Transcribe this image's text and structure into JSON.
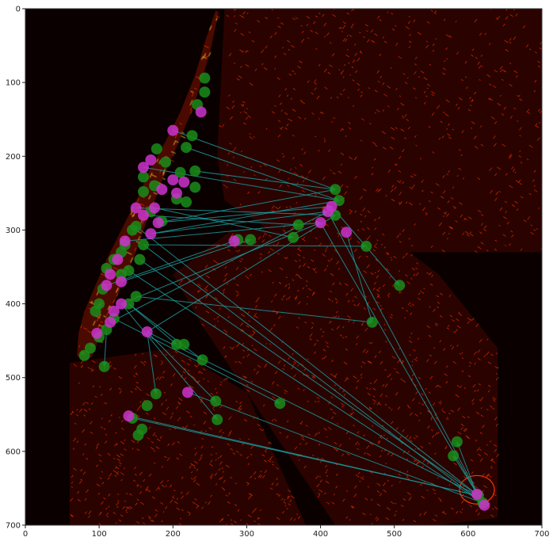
{
  "chart_data": {
    "type": "scatter",
    "title": "",
    "xlabel": "",
    "ylabel": "",
    "xlim": [
      0,
      700
    ],
    "ylim": [
      700,
      0
    ],
    "x_ticks": [
      0,
      100,
      200,
      300,
      400,
      500,
      600,
      700
    ],
    "y_ticks": [
      0,
      100,
      200,
      300,
      400,
      500,
      600,
      700
    ],
    "x_tick_labels": [
      "0",
      "100",
      "200",
      "300",
      "400",
      "500",
      "600",
      "700"
    ],
    "y_tick_labels": [
      "0",
      "100",
      "200",
      "300",
      "400",
      "500",
      "600",
      "700"
    ],
    "grid": false,
    "background_color": "#0a0000",
    "colors": {
      "street_map": "#ff3300",
      "street_map_bright": "#ffcc33",
      "pickup_points": "#1a8c1a",
      "dropoff_points": "#cc33cc",
      "trip_arrows": "#1a9a9a"
    },
    "series": [
      {
        "points": [
          [
            243,
            94
          ],
          [
            243,
            113
          ],
          [
            233,
            130
          ],
          [
            226,
            172
          ],
          [
            218,
            188
          ],
          [
            230,
            220
          ],
          [
            210,
            222
          ],
          [
            190,
            208
          ],
          [
            178,
            190
          ],
          [
            205,
            258
          ],
          [
            230,
            242
          ],
          [
            175,
            240
          ],
          [
            160,
            248
          ],
          [
            160,
            228
          ],
          [
            218,
            262
          ],
          [
            185,
            288
          ],
          [
            170,
            275
          ],
          [
            150,
            295
          ],
          [
            145,
            300
          ],
          [
            135,
            320
          ],
          [
            130,
            330
          ],
          [
            120,
            340
          ],
          [
            160,
            320
          ],
          [
            155,
            340
          ],
          [
            140,
            355
          ],
          [
            130,
            360
          ],
          [
            110,
            352
          ],
          [
            105,
            380
          ],
          [
            100,
            400
          ],
          [
            95,
            410
          ],
          [
            120,
            420
          ],
          [
            110,
            435
          ],
          [
            100,
            445
          ],
          [
            88,
            460
          ],
          [
            80,
            470
          ],
          [
            150,
            390
          ],
          [
            140,
            400
          ],
          [
            107,
            485
          ],
          [
            205,
            455
          ],
          [
            215,
            455
          ],
          [
            240,
            476
          ],
          [
            177,
            522
          ],
          [
            165,
            538
          ],
          [
            145,
            555
          ],
          [
            158,
            570
          ],
          [
            153,
            578
          ],
          [
            258,
            532
          ],
          [
            260,
            557
          ],
          [
            345,
            535
          ],
          [
            288,
            313
          ],
          [
            305,
            313
          ],
          [
            363,
            310
          ],
          [
            370,
            293
          ],
          [
            420,
            245
          ],
          [
            425,
            260
          ],
          [
            420,
            280
          ],
          [
            462,
            322
          ],
          [
            507,
            375
          ],
          [
            470,
            425
          ],
          [
            585,
            587
          ],
          [
            580,
            606
          ],
          [
            614,
            660
          ],
          [
            620,
            670
          ]
        ]
      },
      {
        "points": [
          [
            238,
            140
          ],
          [
            200,
            165
          ],
          [
            170,
            205
          ],
          [
            160,
            215
          ],
          [
            200,
            232
          ],
          [
            205,
            250
          ],
          [
            215,
            235
          ],
          [
            185,
            245
          ],
          [
            150,
            270
          ],
          [
            160,
            280
          ],
          [
            175,
            270
          ],
          [
            180,
            290
          ],
          [
            170,
            305
          ],
          [
            135,
            315
          ],
          [
            125,
            340
          ],
          [
            115,
            360
          ],
          [
            130,
            370
          ],
          [
            110,
            375
          ],
          [
            130,
            400
          ],
          [
            120,
            410
          ],
          [
            115,
            425
          ],
          [
            97,
            440
          ],
          [
            165,
            438
          ],
          [
            220,
            520
          ],
          [
            140,
            552
          ],
          [
            283,
            315
          ],
          [
            400,
            290
          ],
          [
            410,
            275
          ],
          [
            415,
            268
          ],
          [
            435,
            303
          ],
          [
            612,
            658
          ],
          [
            622,
            673
          ]
        ]
      }
    ],
    "arrows": [
      [
        [
          200,
          165
        ],
        [
          420,
          245
        ]
      ],
      [
        [
          160,
          215
        ],
        [
          425,
          260
        ]
      ],
      [
        [
          150,
          270
        ],
        [
          420,
          280
        ]
      ],
      [
        [
          180,
          290
        ],
        [
          415,
          268
        ]
      ],
      [
        [
          170,
          305
        ],
        [
          410,
          275
        ]
      ],
      [
        [
          135,
          315
        ],
        [
          400,
          290
        ]
      ],
      [
        [
          160,
          280
        ],
        [
          370,
          293
        ]
      ],
      [
        [
          175,
          270
        ],
        [
          363,
          310
        ]
      ],
      [
        [
          130,
          370
        ],
        [
          305,
          313
        ]
      ],
      [
        [
          110,
          375
        ],
        [
          288,
          313
        ]
      ],
      [
        [
          165,
          438
        ],
        [
          420,
          280
        ]
      ],
      [
        [
          130,
          400
        ],
        [
          400,
          290
        ]
      ],
      [
        [
          115,
          425
        ],
        [
          410,
          275
        ]
      ],
      [
        [
          415,
          268
        ],
        [
          507,
          375
        ]
      ],
      [
        [
          435,
          303
        ],
        [
          470,
          425
        ]
      ],
      [
        [
          400,
          290
        ],
        [
          614,
          660
        ]
      ],
      [
        [
          410,
          275
        ],
        [
          620,
          670
        ]
      ],
      [
        [
          150,
          295
        ],
        [
          614,
          660
        ]
      ],
      [
        [
          160,
          320
        ],
        [
          620,
          670
        ]
      ],
      [
        [
          155,
          340
        ],
        [
          614,
          660
        ]
      ],
      [
        [
          140,
          355
        ],
        [
          620,
          670
        ]
      ],
      [
        [
          165,
          438
        ],
        [
          614,
          660
        ]
      ],
      [
        [
          220,
          520
        ],
        [
          620,
          670
        ]
      ],
      [
        [
          140,
          552
        ],
        [
          614,
          660
        ]
      ],
      [
        [
          612,
          658
        ],
        [
          585,
          587
        ]
      ],
      [
        [
          622,
          673
        ],
        [
          580,
          606
        ]
      ],
      [
        [
          150,
          390
        ],
        [
          470,
          425
        ]
      ],
      [
        [
          140,
          400
        ],
        [
          240,
          476
        ]
      ],
      [
        [
          120,
          420
        ],
        [
          345,
          535
        ]
      ],
      [
        [
          165,
          438
        ],
        [
          258,
          532
        ]
      ],
      [
        [
          130,
          400
        ],
        [
          260,
          557
        ]
      ],
      [
        [
          110,
          435
        ],
        [
          107,
          485
        ]
      ],
      [
        [
          140,
          400
        ],
        [
          205,
          455
        ]
      ],
      [
        [
          165,
          438
        ],
        [
          177,
          522
        ]
      ],
      [
        [
          145,
          555
        ],
        [
          614,
          660
        ]
      ],
      [
        [
          160,
          320
        ],
        [
          462,
          322
        ]
      ],
      [
        [
          180,
          290
        ],
        [
          420,
          245
        ]
      ],
      [
        [
          170,
          305
        ],
        [
          425,
          260
        ]
      ],
      [
        [
          230,
          220
        ],
        [
          420,
          245
        ]
      ],
      [
        [
          218,
          188
        ],
        [
          425,
          260
        ]
      ]
    ]
  }
}
